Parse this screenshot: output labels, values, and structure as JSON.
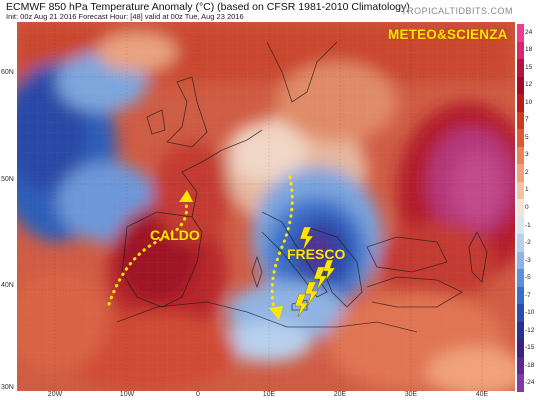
{
  "header": {
    "title": "ECMWF 850 hPa Temperature Anomaly (°C) (based on CFSR 1981-2010 Climatology)",
    "subtitle": "Init: 00z Aug 21 2016   Forecast Hour: [48]   valid at 00z Tue, Aug 23 2016",
    "watermark": "TROPICALTIDBITS.COM"
  },
  "map": {
    "brand_label": "METEO&SCIENZA",
    "warm_label": "CALDO",
    "cool_label": "FRESCO",
    "arrow_color": "#ffe600",
    "lightning_color": "#ffe600",
    "lat_labels": [
      "60N",
      "50N",
      "40N",
      "30N"
    ],
    "lon_labels": [
      "20W",
      "10W",
      "0",
      "10E",
      "20E",
      "30E",
      "40E"
    ]
  },
  "colorbar": {
    "ticks": [
      "24",
      "18",
      "15",
      "12",
      "10",
      "7",
      "5",
      "3",
      "2",
      "1",
      "0",
      "-1",
      "-2",
      "-3",
      "-5",
      "-7",
      "-10",
      "-12",
      "-15",
      "-18",
      "-24"
    ],
    "colors": [
      "#f03c8c",
      "#d6286e",
      "#b3133f",
      "#9e0b26",
      "#b81b18",
      "#cd3a1f",
      "#dd5a34",
      "#e98254",
      "#f0a17a",
      "#f3c2a4",
      "#f6e3d2",
      "#d9e6f4",
      "#b7d0ee",
      "#8fb3e3",
      "#5f8fd6",
      "#3a6bc6",
      "#2b4bb0",
      "#28338f",
      "#3a237a",
      "#5c2a8f",
      "#7e3aa5"
    ]
  }
}
